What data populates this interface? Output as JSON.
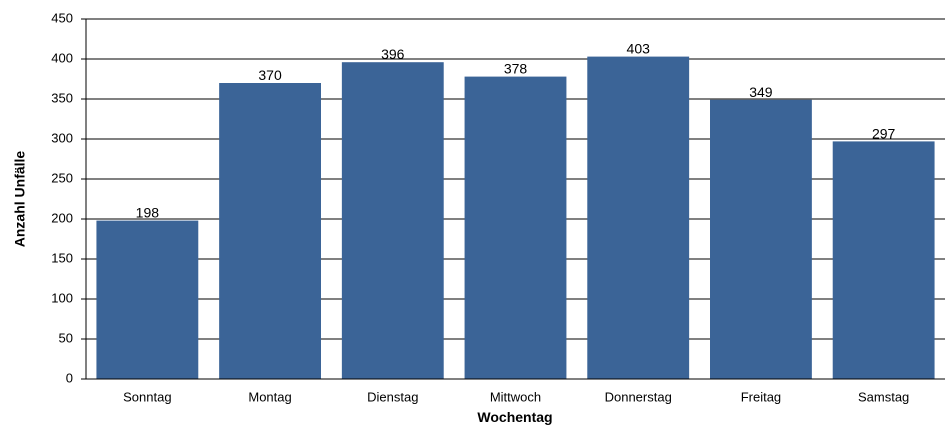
{
  "chart_data": {
    "type": "bar",
    "x_label": "Wochentag",
    "y_label": "Anzahl Unfälle",
    "categories": [
      "Sonntag",
      "Montag",
      "Dienstag",
      "Mittwoch",
      "Donnerstag",
      "Freitag",
      "Samstag"
    ],
    "values": [
      198,
      370,
      396,
      378,
      403,
      349,
      297
    ],
    "color": "#3b6497",
    "ylim": [
      0,
      450
    ],
    "yticks": [
      0,
      50,
      100,
      150,
      200,
      250,
      300,
      350,
      400,
      450
    ],
    "grid": true
  }
}
